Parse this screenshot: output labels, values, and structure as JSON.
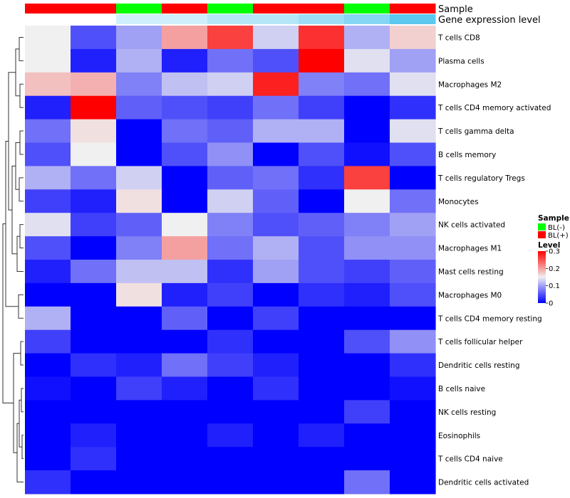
{
  "chart_data": {
    "type": "heatmap",
    "annotation_rows": [
      {
        "name": "Sample",
        "values": [
          "BL(+)",
          "BL(+)",
          "BL(-)",
          "BL(+)",
          "BL(-)",
          "BL(+)",
          "BL(+)",
          "BL(-)",
          "BL(+)"
        ]
      },
      {
        "name": "Gene expression level",
        "values": [
          0,
          0,
          0.3,
          0.3,
          0.45,
          0.45,
          0.6,
          0.75,
          1.0
        ]
      }
    ],
    "rows": [
      "T cells CD8",
      "Plasma cells",
      "Macrophages M2",
      "T cells CD4 memory activated",
      "T cells gamma delta",
      "B cells memory",
      "T cells regulatory  Tregs",
      "Monocytes",
      "NK cells activated",
      "Macrophages M1",
      "Mast cells resting",
      "Macrophages M0",
      "T cells CD4 memory resting",
      "T cells follicular helper",
      "Dendritic cells resting",
      "B cells naive",
      "NK cells resting",
      "Eosinophils",
      "T cells CD4 naive",
      "Dendritic cells activated"
    ],
    "values": [
      [
        0.15,
        0.05,
        0.1,
        0.2,
        0.26,
        0.13,
        0.27,
        0.11,
        0.17
      ],
      [
        0.15,
        0.02,
        0.11,
        0.02,
        0.07,
        0.05,
        0.3,
        0.14,
        0.1
      ],
      [
        0.18,
        0.19,
        0.08,
        0.12,
        0.13,
        0.28,
        0.08,
        0.07,
        0.14
      ],
      [
        0.02,
        0.3,
        0.06,
        0.05,
        0.04,
        0.07,
        0.04,
        0.0,
        0.03
      ],
      [
        0.07,
        0.16,
        0.0,
        0.07,
        0.06,
        0.11,
        0.11,
        0.0,
        0.14
      ],
      [
        0.05,
        0.15,
        0.0,
        0.05,
        0.09,
        0.0,
        0.05,
        0.01,
        0.05
      ],
      [
        0.11,
        0.07,
        0.13,
        0.0,
        0.06,
        0.07,
        0.03,
        0.26,
        0.0
      ],
      [
        0.04,
        0.02,
        0.16,
        0.0,
        0.13,
        0.06,
        0.0,
        0.15,
        0.07
      ],
      [
        0.14,
        0.04,
        0.06,
        0.15,
        0.08,
        0.05,
        0.06,
        0.08,
        0.1
      ],
      [
        0.05,
        0.0,
        0.08,
        0.2,
        0.07,
        0.11,
        0.05,
        0.09,
        0.09
      ],
      [
        0.02,
        0.07,
        0.12,
        0.12,
        0.03,
        0.1,
        0.05,
        0.04,
        0.06
      ],
      [
        0.0,
        0.0,
        0.16,
        0.02,
        0.04,
        0.0,
        0.03,
        0.02,
        0.05
      ],
      [
        0.11,
        0.0,
        0.0,
        0.06,
        0.0,
        0.04,
        0.0,
        0.0,
        0.0
      ],
      [
        0.04,
        0.0,
        0.0,
        0.0,
        0.03,
        0.0,
        0.0,
        0.05,
        0.09
      ],
      [
        0.0,
        0.03,
        0.02,
        0.07,
        0.04,
        0.02,
        0.0,
        0.0,
        0.03
      ],
      [
        0.01,
        0.0,
        0.04,
        0.02,
        0.0,
        0.03,
        0.0,
        0.0,
        0.01
      ],
      [
        0.0,
        0.0,
        0.0,
        0.0,
        0.0,
        0.0,
        0.0,
        0.04,
        0.0
      ],
      [
        0.0,
        0.02,
        0.0,
        0.0,
        0.02,
        0.0,
        0.02,
        0.0,
        0.0
      ],
      [
        0.0,
        0.03,
        0.0,
        0.0,
        0.0,
        0.0,
        0.0,
        0.0,
        0.0
      ],
      [
        0.03,
        0.0,
        0.0,
        0.0,
        0.0,
        0.0,
        0.0,
        0.07,
        0.0
      ]
    ],
    "color_scale": {
      "min": 0,
      "max": 0.3,
      "stops": [
        {
          "value": 0,
          "color": "#0000ff"
        },
        {
          "value": 0.15,
          "color": "#f0f0f0"
        },
        {
          "value": 0.3,
          "color": "#ff0000"
        }
      ]
    },
    "sample_colors": {
      "BL(-)": "#00ff00",
      "BL(+)": "#ff0000"
    },
    "expression_colors": {
      "low": "#ffffff",
      "high": "#5bc8f0"
    },
    "legend": {
      "sample_title": "Sample",
      "sample_entries": [
        "BL(-)",
        "BL(+)"
      ],
      "level_title": "Level",
      "level_ticks": [
        "0.3",
        "0.2",
        "0.1",
        "0"
      ]
    },
    "dendrogram": "rows",
    "legend_position": "right"
  }
}
